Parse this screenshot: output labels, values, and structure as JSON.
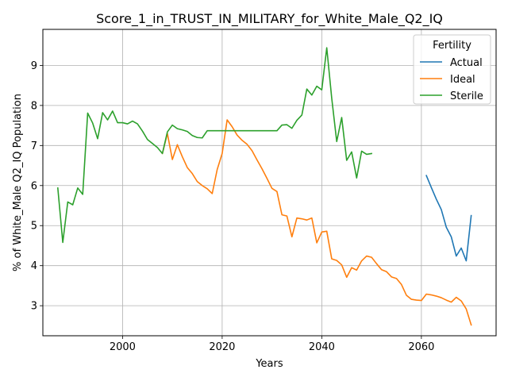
{
  "chart_data": {
    "type": "line",
    "title": "Score_1_in_TRUST_IN_MILITARY_for_White_Male_Q2_IQ",
    "xlabel": "Years",
    "ylabel": "% of White_Male Q2_IQ Population",
    "xlim": [
      1984,
      2075
    ],
    "ylim": [
      2.25,
      9.9
    ],
    "xticks": [
      2000,
      2020,
      2040,
      2060
    ],
    "yticks": [
      3,
      4,
      5,
      6,
      7,
      8,
      9
    ],
    "grid": true,
    "legend": {
      "title": "Fertility",
      "placement": "top-right"
    },
    "series": [
      {
        "name": "Actual",
        "color": "#1f77b4",
        "x": [
          2061,
          2062,
          2063,
          2064,
          2065,
          2066,
          2067,
          2068,
          2069,
          2070
        ],
        "y": [
          6.25,
          5.95,
          5.66,
          5.4,
          4.96,
          4.72,
          4.24,
          4.44,
          4.12,
          5.25
        ]
      },
      {
        "name": "Ideal",
        "color": "#ff7f0e",
        "x": [
          2008,
          2009,
          2010,
          2011,
          2012,
          2013,
          2014,
          2015,
          2016,
          2017,
          2018,
          2019,
          2020,
          2021,
          2022,
          2023,
          2024,
          2025,
          2026,
          2027,
          2028,
          2029,
          2030,
          2031,
          2032,
          2033,
          2034,
          2035,
          2036,
          2037,
          2038,
          2039,
          2040,
          2041,
          2042,
          2043,
          2044,
          2045,
          2046,
          2047,
          2048,
          2049,
          2050,
          2051,
          2052,
          2053,
          2054,
          2055,
          2056,
          2057,
          2058,
          2059,
          2060,
          2061,
          2062,
          2063,
          2064,
          2065,
          2066,
          2067,
          2068,
          2069,
          2070
        ],
        "y": [
          6.8,
          7.3,
          6.65,
          7.02,
          6.72,
          6.45,
          6.3,
          6.1,
          6.0,
          5.92,
          5.8,
          6.4,
          6.8,
          7.64,
          7.47,
          7.26,
          7.13,
          7.03,
          6.87,
          6.64,
          6.42,
          6.18,
          5.93,
          5.85,
          5.27,
          5.24,
          4.72,
          5.19,
          5.17,
          5.14,
          5.19,
          4.57,
          4.84,
          4.86,
          4.17,
          4.13,
          4.02,
          3.71,
          3.95,
          3.89,
          4.12,
          4.24,
          4.21,
          4.05,
          3.9,
          3.85,
          3.72,
          3.68,
          3.53,
          3.26,
          3.16,
          3.14,
          3.13,
          3.29,
          3.27,
          3.24,
          3.2,
          3.14,
          3.09,
          3.21,
          3.12,
          2.92,
          2.52
        ]
      },
      {
        "name": "Sterile",
        "color": "#2ca02c",
        "x": [
          1987,
          1988,
          1989,
          1990,
          1991,
          1992,
          1993,
          1994,
          1995,
          1996,
          1997,
          1998,
          1999,
          2000,
          2001,
          2002,
          2003,
          2004,
          2005,
          2006,
          2007,
          2008,
          2009,
          2010,
          2011,
          2012,
          2013,
          2014,
          2015,
          2016,
          2017,
          2018,
          2019,
          2020,
          2021,
          2022,
          2023,
          2024,
          2025,
          2026,
          2027,
          2028,
          2029,
          2030,
          2031,
          2032,
          2033,
          2034,
          2035,
          2036,
          2037,
          2038,
          2039,
          2040,
          2041,
          2042,
          2043,
          2044,
          2045,
          2046,
          2047,
          2048,
          2049,
          2050
        ],
        "y": [
          5.94,
          4.58,
          5.59,
          5.52,
          5.94,
          5.78,
          7.81,
          7.56,
          7.17,
          7.82,
          7.64,
          7.86,
          7.57,
          7.57,
          7.54,
          7.61,
          7.54,
          7.36,
          7.15,
          7.05,
          6.95,
          6.8,
          7.34,
          7.51,
          7.42,
          7.39,
          7.35,
          7.25,
          7.2,
          7.19,
          7.37,
          7.37,
          7.37,
          7.37,
          7.37,
          7.37,
          7.37,
          7.37,
          7.37,
          7.37,
          7.37,
          7.37,
          7.37,
          7.37,
          7.37,
          7.51,
          7.52,
          7.43,
          7.63,
          7.76,
          8.41,
          8.26,
          8.48,
          8.39,
          9.44,
          8.18,
          7.1,
          7.7,
          6.63,
          6.84,
          6.19,
          6.86,
          6.78,
          6.8
        ]
      }
    ]
  }
}
